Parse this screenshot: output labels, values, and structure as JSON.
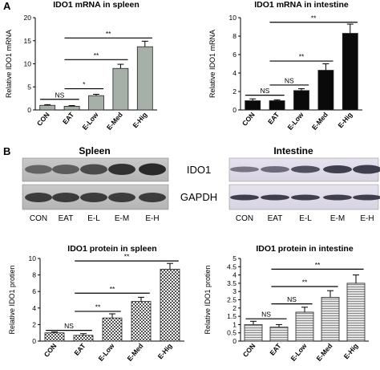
{
  "panel_labels": {
    "a": "A",
    "b": "B"
  },
  "blot": {
    "left_title": "Spleen",
    "right_title": "Intestine",
    "row1_label": "IDO1",
    "row2_label": "GAPDH",
    "lanes_left": [
      "CON",
      "EAT",
      "E-L",
      "E-M",
      "E-H"
    ],
    "lanes_right": [
      "CON",
      "EAT",
      "E-L",
      "E-M",
      "E-H"
    ]
  },
  "chart_data": [
    {
      "type": "bar",
      "title": "IDO1 mRNA in spleen",
      "ylabel": "Relative IDO1 mRNA",
      "xlabel": "",
      "categories": [
        "CON",
        "EAT",
        "E-Low",
        "E-Med",
        "E-Hig"
      ],
      "values": [
        1.0,
        0.8,
        3.1,
        9.0,
        13.7
      ],
      "errors": [
        0.15,
        0.15,
        0.3,
        0.9,
        1.2
      ],
      "ylim": [
        0,
        20
      ],
      "yticks": [
        0,
        5,
        10,
        15,
        20
      ],
      "bar_color": "#a7b0a8",
      "comparisons": [
        {
          "from": 0,
          "to": 1,
          "label": "NS",
          "y": 2.3
        },
        {
          "from": 1,
          "to": 2,
          "label": "*",
          "y": 4.6
        },
        {
          "from": 1,
          "to": 3,
          "label": "**",
          "y": 10.9
        },
        {
          "from": 1,
          "to": 4,
          "label": "**",
          "y": 15.6
        }
      ]
    },
    {
      "type": "bar",
      "title": "IDO1 mRNA in intestine",
      "ylabel": "Relative IDO1 mRNA",
      "xlabel": "",
      "categories": [
        "CON",
        "EAT",
        "E-Low",
        "E-Med",
        "E-Hig"
      ],
      "values": [
        1.0,
        1.0,
        2.1,
        4.3,
        8.3
      ],
      "errors": [
        0.2,
        0.1,
        0.2,
        0.7,
        1.0
      ],
      "ylim": [
        0,
        10
      ],
      "yticks": [
        0,
        2,
        4,
        6,
        8,
        10
      ],
      "bar_color": "#0a0a0a",
      "comparisons": [
        {
          "from": 0,
          "to": 1,
          "label": "NS",
          "y": 1.6
        },
        {
          "from": 1,
          "to": 2,
          "label": "NS",
          "y": 2.7
        },
        {
          "from": 1,
          "to": 3,
          "label": "**",
          "y": 5.3
        },
        {
          "from": 1,
          "to": 4,
          "label": "**",
          "y": 9.5
        }
      ]
    },
    {
      "type": "bar",
      "title": "IDO1 protein in spleen",
      "ylabel": "Relative IDO1 protien",
      "xlabel": "",
      "categories": [
        "CON",
        "EAT",
        "E-Low",
        "E-Med",
        "E-Hig"
      ],
      "values": [
        1.0,
        0.7,
        2.8,
        4.8,
        8.7
      ],
      "errors": [
        0.1,
        0.2,
        0.5,
        0.5,
        0.7
      ],
      "ylim": [
        0,
        10
      ],
      "yticks": [
        0,
        2,
        4,
        6,
        8,
        10
      ],
      "bar_color": "#ffffff",
      "pattern": "checker",
      "comparisons": [
        {
          "from": 0,
          "to": 1,
          "label": "NS",
          "y": 1.3
        },
        {
          "from": 1,
          "to": 2,
          "label": "**",
          "y": 3.6
        },
        {
          "from": 1,
          "to": 3,
          "label": "**",
          "y": 5.8
        },
        {
          "from": 1,
          "to": 4,
          "label": "**",
          "y": 9.7
        }
      ]
    },
    {
      "type": "bar",
      "title": "IDO1 protein in intestine",
      "ylabel": "Relative IDO1 protien",
      "xlabel": "",
      "categories": [
        "CON",
        "EAT",
        "E-Low",
        "E-Med",
        "E-Hig"
      ],
      "values": [
        1.0,
        0.85,
        1.75,
        2.65,
        3.5
      ],
      "errors": [
        0.2,
        0.15,
        0.3,
        0.4,
        0.5
      ],
      "ylim": [
        0,
        5
      ],
      "yticks": [
        0,
        0.5,
        1,
        1.5,
        2,
        2.5,
        3,
        3.5,
        4,
        4.5,
        5
      ],
      "bar_color": "#d4d4d4",
      "pattern": "lines",
      "comparisons": [
        {
          "from": 0,
          "to": 1,
          "label": "NS",
          "y": 1.35
        },
        {
          "from": 1,
          "to": 2,
          "label": "NS",
          "y": 2.25
        },
        {
          "from": 1,
          "to": 3,
          "label": "**",
          "y": 3.3
        },
        {
          "from": 1,
          "to": 4,
          "label": "**",
          "y": 4.35
        }
      ]
    }
  ]
}
